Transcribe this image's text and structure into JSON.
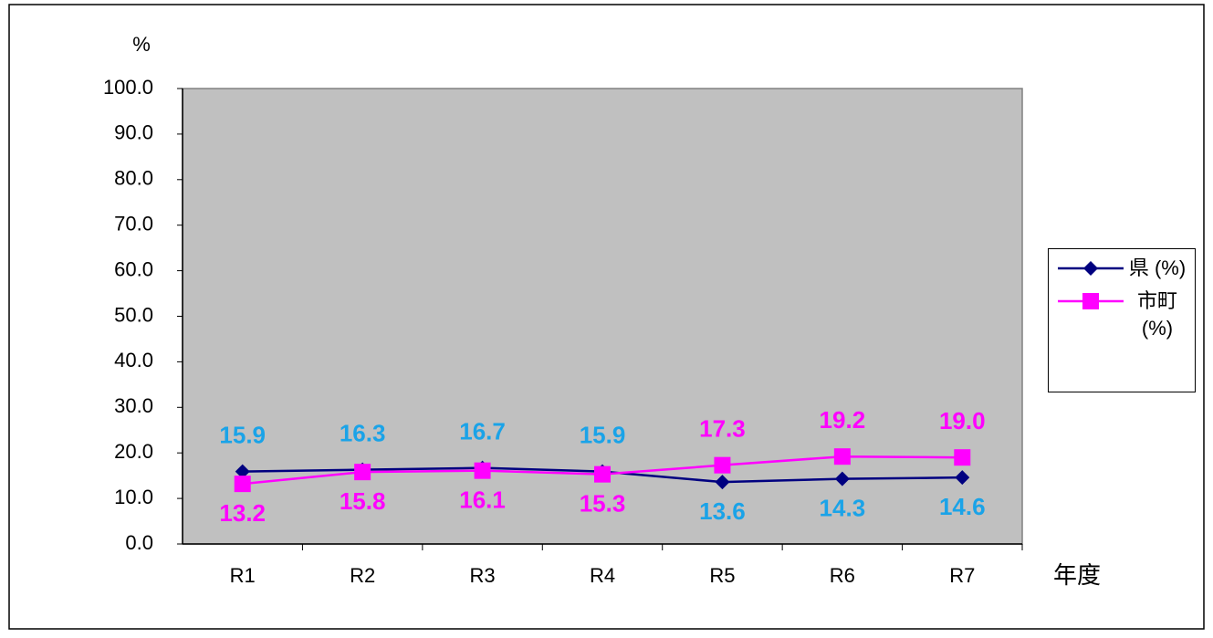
{
  "chart_data": {
    "type": "line",
    "y_label": "%",
    "x_label": "年度",
    "categories": [
      "R1",
      "R2",
      "R3",
      "R4",
      "R5",
      "R6",
      "R7"
    ],
    "series": [
      {
        "name": "県 (%)",
        "color": "#000080",
        "label_color": "#1aa3e8",
        "marker": "diamond",
        "values": [
          15.9,
          16.3,
          16.7,
          15.9,
          13.6,
          14.3,
          14.6
        ],
        "value_labels": [
          "15.9",
          "16.3",
          "16.7",
          "15.9",
          "13.6",
          "14.3",
          "14.6"
        ]
      },
      {
        "name": "市町 (%)",
        "color": "#ff00ff",
        "label_color": "#ff00ff",
        "marker": "square",
        "values": [
          13.2,
          15.8,
          16.1,
          15.3,
          17.3,
          19.2,
          19.0
        ],
        "value_labels": [
          "13.2",
          "15.8",
          "16.1",
          "15.3",
          "17.3",
          "19.2",
          "19.0"
        ]
      }
    ],
    "ylim": [
      0,
      100
    ],
    "yticks": [
      {
        "value": 0,
        "label": "0.0"
      },
      {
        "value": 10,
        "label": "10.0"
      },
      {
        "value": 20,
        "label": "20.0"
      },
      {
        "value": 30,
        "label": "30.0"
      },
      {
        "value": 40,
        "label": "40.0"
      },
      {
        "value": 50,
        "label": "50.0"
      },
      {
        "value": 60,
        "label": "60.0"
      },
      {
        "value": 70,
        "label": "70.0"
      },
      {
        "value": 80,
        "label": "80.0"
      },
      {
        "value": 90,
        "label": "90.0"
      },
      {
        "value": 100,
        "label": "100.0"
      }
    ],
    "plot_background": "#c0c0c0",
    "legend": "right"
  }
}
